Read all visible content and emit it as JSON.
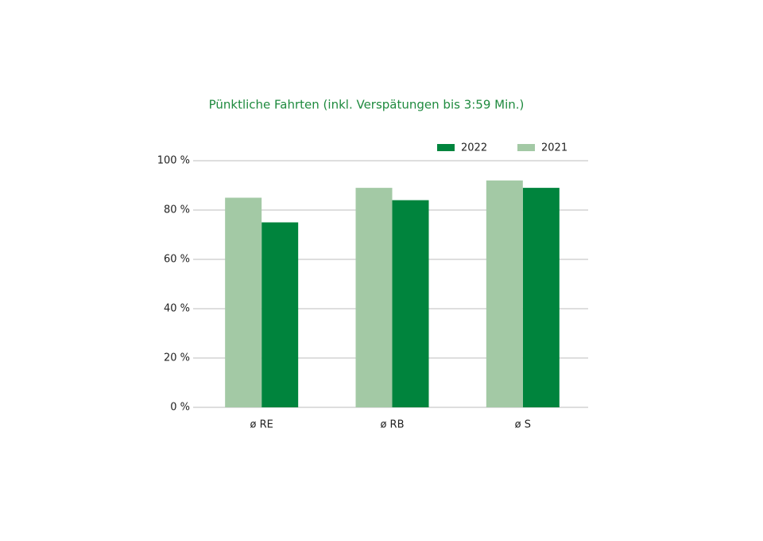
{
  "chart_data": {
    "type": "bar",
    "title": "Pünktliche Fahrten (inkl. Verspätungen bis 3:59 Min.)",
    "categories": [
      "ø RE",
      "ø RB",
      "ø S"
    ],
    "series": [
      {
        "name": "2022",
        "color": "#00843d",
        "values": [
          75,
          84,
          89
        ]
      },
      {
        "name": "2021",
        "color": "#a3c9a5",
        "values": [
          85,
          89,
          92
        ]
      }
    ],
    "ylim": [
      0,
      100
    ],
    "yticks": [
      {
        "value": 0,
        "label": "0 %"
      },
      {
        "value": 20,
        "label": "20 %"
      },
      {
        "value": 40,
        "label": "40 %"
      },
      {
        "value": 60,
        "label": "60 %"
      },
      {
        "value": 80,
        "label": "80 %"
      },
      {
        "value": 100,
        "label": "100 %"
      }
    ],
    "grid": true
  }
}
